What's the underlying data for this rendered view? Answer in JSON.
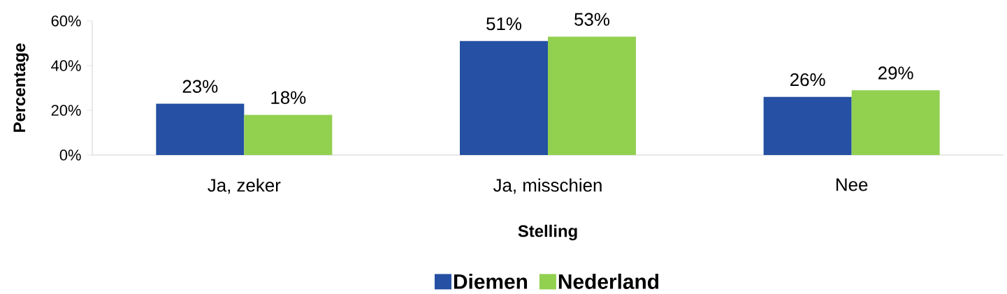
{
  "chart_data": {
    "type": "bar",
    "xlabel": "Stelling",
    "ylabel": "Percentage",
    "categories": [
      "Ja, zeker",
      "Ja, misschien",
      "Nee"
    ],
    "series": [
      {
        "name": "Diemen",
        "color": "#2550a3",
        "values": [
          23,
          51,
          26
        ],
        "value_labels": [
          "23%",
          "51%",
          "26%"
        ]
      },
      {
        "name": "Nederland",
        "color": "#92d050",
        "values": [
          18,
          53,
          29
        ],
        "value_labels": [
          "18%",
          "53%",
          "29%"
        ]
      }
    ],
    "ylim": [
      0,
      60
    ],
    "yticks": [
      {
        "value": 0,
        "label": "0%"
      },
      {
        "value": 20,
        "label": "20%"
      },
      {
        "value": 40,
        "label": "40%"
      },
      {
        "value": 60,
        "label": "60%"
      }
    ],
    "grid": false,
    "legend": "bottom"
  }
}
